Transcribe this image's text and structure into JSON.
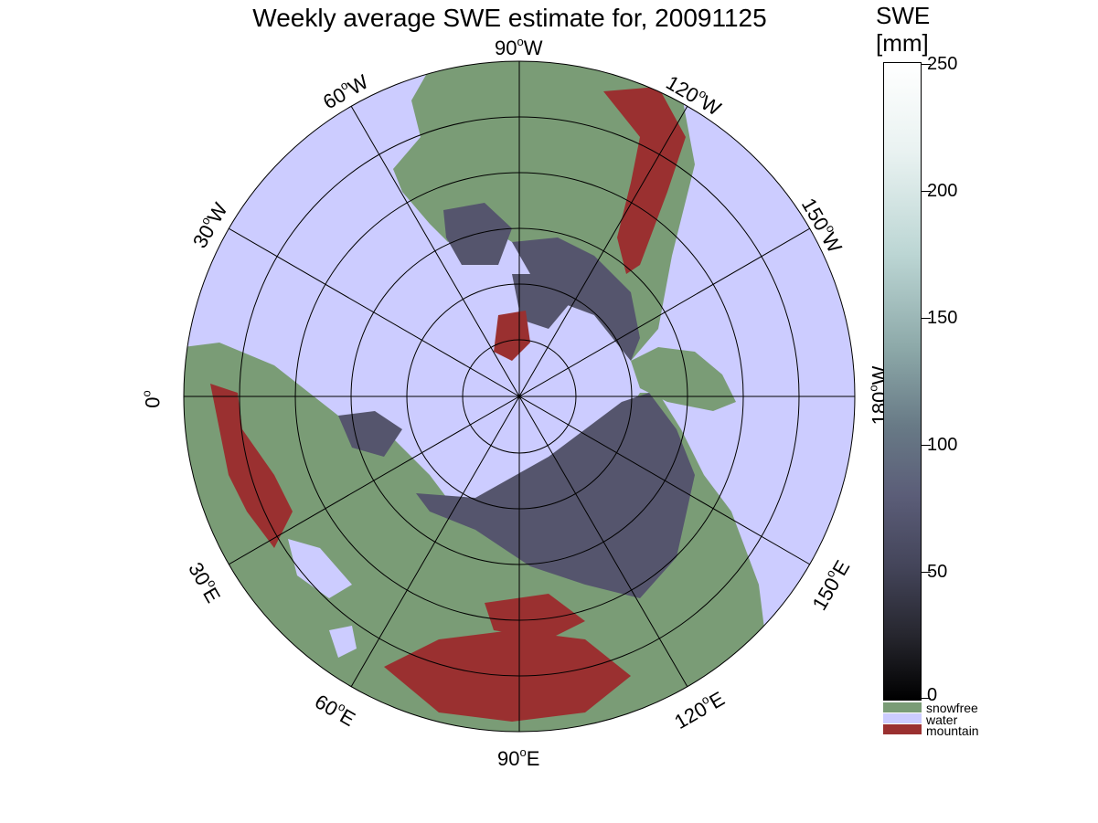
{
  "title": "Weekly average SWE estimate for, 20091125",
  "colorbar": {
    "title_line1": "SWE",
    "title_line2": "[mm]",
    "ticks": [
      "250",
      "200",
      "150",
      "100",
      "50",
      "0"
    ],
    "categories": [
      {
        "label": "snowfree",
        "color": "#7a9c76"
      },
      {
        "label": "water",
        "color": "#ccccff"
      },
      {
        "label": "mountain",
        "color": "#9a3030"
      }
    ]
  },
  "longitude_labels": {
    "w90": {
      "deg": "90",
      "dir": "W"
    },
    "w60": {
      "deg": "60",
      "dir": "W"
    },
    "w120": {
      "deg": "120",
      "dir": "W"
    },
    "w30": {
      "deg": "30",
      "dir": "W"
    },
    "w150": {
      "deg": "150",
      "dir": "W"
    },
    "lon0": {
      "deg": "0",
      "dir": ""
    },
    "w180": {
      "deg": "180",
      "dir": "W"
    },
    "e30": {
      "deg": "30",
      "dir": "E"
    },
    "e150": {
      "deg": "150",
      "dir": "E"
    },
    "e60": {
      "deg": "60",
      "dir": "E"
    },
    "e120": {
      "deg": "120",
      "dir": "E"
    },
    "e90": {
      "deg": "90",
      "dir": "E"
    }
  },
  "colors": {
    "water": "#ccccff",
    "snowfree": "#7a9c76",
    "mountain": "#9a3030",
    "snow": "#55556d"
  }
}
